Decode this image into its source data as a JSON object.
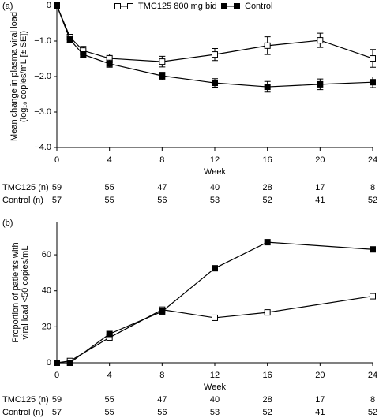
{
  "chart_data": [
    {
      "type": "line",
      "panel_label": "(a)",
      "ylabel": [
        "Mean change in plasma viral load",
        "(log₁₀ copies/mL [± SE])"
      ],
      "xlabel": "Week",
      "xlim": [
        0,
        24
      ],
      "xticks": [
        0,
        4,
        8,
        12,
        16,
        20,
        24
      ],
      "ylim": [
        -4,
        0
      ],
      "yticks": [
        0,
        {
          "value": -1,
          "label": "−1.0"
        },
        {
          "value": -2,
          "label": "−2.0"
        },
        {
          "value": -3,
          "label": "−3.0"
        },
        {
          "value": -4,
          "label": "−4.0"
        }
      ],
      "legend": "top",
      "series": [
        {
          "name": "TMC125 800 mg bid",
          "color": "#000000",
          "marker": "open",
          "x": [
            0,
            1,
            2,
            4,
            8,
            12,
            16,
            20,
            24
          ],
          "values": [
            0,
            -0.89,
            -1.27,
            -1.49,
            -1.58,
            -1.38,
            -1.13,
            -0.98,
            -1.49
          ],
          "errors": [
            0,
            0.08,
            0.12,
            0.12,
            0.15,
            0.17,
            0.25,
            0.2,
            0.25
          ]
        },
        {
          "name": "Control",
          "color": "#000000",
          "marker": "filled",
          "x": [
            0,
            1,
            2,
            4,
            8,
            12,
            16,
            20,
            24
          ],
          "values": [
            0,
            -0.96,
            -1.38,
            -1.64,
            -1.98,
            -2.18,
            -2.29,
            -2.22,
            -2.16
          ],
          "errors": [
            0,
            0.08,
            0.08,
            0.1,
            0.1,
            0.12,
            0.15,
            0.15,
            0.15
          ]
        }
      ],
      "table": {
        "columns": [
          0,
          4,
          8,
          12,
          16,
          20,
          24
        ],
        "rows": [
          {
            "label": "TMC125 (n)",
            "values": [
              59,
              55,
              47,
              40,
              28,
              17,
              8
            ]
          },
          {
            "label": "Control (n)",
            "values": [
              57,
              55,
              56,
              53,
              52,
              41,
              52
            ]
          }
        ]
      }
    },
    {
      "type": "line",
      "panel_label": "(b)",
      "ylabel": [
        "Proportion of patients with",
        "viral load <50 copies/mL"
      ],
      "xlabel": "Week",
      "xlim": [
        0,
        24
      ],
      "xticks": [
        0,
        4,
        8,
        12,
        16,
        20,
        24
      ],
      "ylim": [
        0,
        78
      ],
      "yticks": [
        0,
        20,
        40,
        60
      ],
      "series": [
        {
          "name": "TMC125 800 mg bid",
          "color": "#000000",
          "marker": "open",
          "x": [
            0,
            1,
            4,
            8,
            12,
            16,
            24
          ],
          "values": [
            0,
            1,
            14,
            29.5,
            25,
            28,
            37
          ]
        },
        {
          "name": "Control",
          "color": "#000000",
          "marker": "filled",
          "x": [
            0,
            1,
            4,
            8,
            12,
            16,
            24
          ],
          "values": [
            0,
            0,
            16,
            28.5,
            52.5,
            67,
            63
          ]
        }
      ],
      "table": {
        "columns": [
          0,
          4,
          8,
          12,
          16,
          20,
          24
        ],
        "rows": [
          {
            "label": "TMC125 (n)",
            "values": [
              59,
              55,
              47,
              40,
              28,
              17,
              8
            ]
          },
          {
            "label": "Control (n)",
            "values": [
              57,
              55,
              56,
              53,
              52,
              41,
              52
            ]
          }
        ]
      }
    }
  ]
}
